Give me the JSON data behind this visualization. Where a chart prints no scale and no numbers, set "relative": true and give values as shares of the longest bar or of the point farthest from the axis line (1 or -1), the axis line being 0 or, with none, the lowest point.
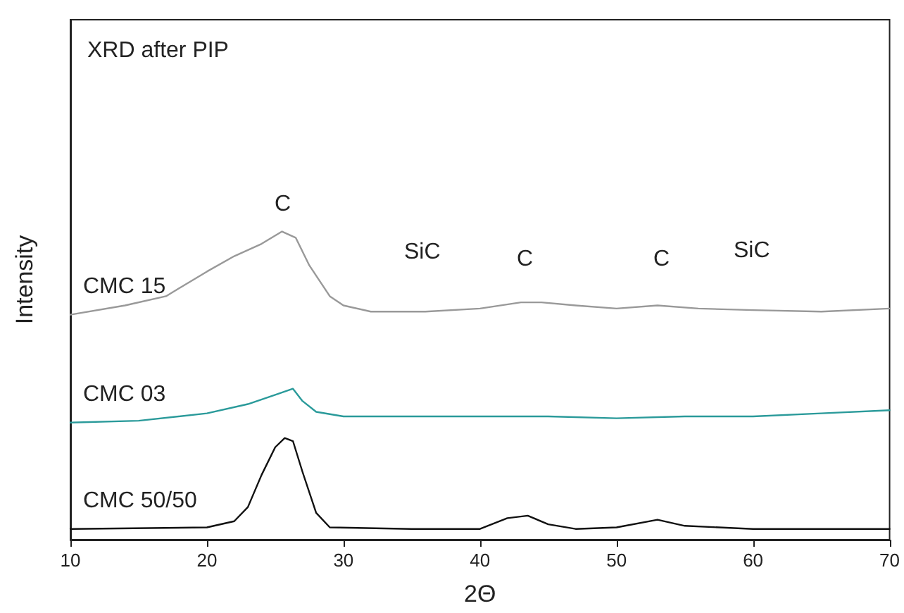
{
  "chart_data": {
    "type": "line",
    "relative": true,
    "xlabel": "2Θ",
    "ylabel": "Intensity",
    "xlim": [
      10,
      70
    ],
    "xticks": [
      10,
      20,
      30,
      40,
      50,
      60,
      70
    ],
    "grid": false,
    "legend": false,
    "marker": "none",
    "line_style": "solid",
    "annotations": [
      "XRD after PIP",
      "C",
      "SiC",
      "C",
      "C",
      "SiC"
    ],
    "series": [
      {
        "name": "CMC 15",
        "color": "#999999",
        "x": [
          10,
          14,
          17,
          20,
          22,
          24,
          25.5,
          26.5,
          27.5,
          29,
          30,
          32,
          36,
          40,
          43,
          44.5,
          47,
          50,
          53,
          56,
          60,
          65,
          70
        ],
        "values": [
          0.73,
          0.76,
          0.79,
          0.87,
          0.92,
          0.96,
          1.0,
          0.98,
          0.89,
          0.79,
          0.76,
          0.74,
          0.74,
          0.75,
          0.77,
          0.77,
          0.76,
          0.75,
          0.76,
          0.75,
          0.745,
          0.74,
          0.75
        ]
      },
      {
        "name": "CMC 03",
        "color": "#2a9a9a",
        "x": [
          10,
          15,
          20,
          23,
          25,
          26.3,
          27,
          28,
          30,
          35,
          40,
          45,
          50,
          55,
          60,
          65,
          70
        ],
        "values": [
          0.38,
          0.386,
          0.41,
          0.44,
          0.47,
          0.49,
          0.45,
          0.415,
          0.4,
          0.4,
          0.4,
          0.4,
          0.394,
          0.4,
          0.4,
          0.41,
          0.42
        ]
      },
      {
        "name": "CMC 50/50",
        "color": "#111111",
        "x": [
          10,
          20,
          22,
          23,
          24,
          25,
          25.7,
          26.3,
          27,
          28,
          29,
          35,
          40,
          42,
          43.5,
          45,
          47,
          50,
          53,
          55,
          60,
          70
        ],
        "values": [
          0.035,
          0.04,
          0.06,
          0.106,
          0.21,
          0.3,
          0.33,
          0.32,
          0.22,
          0.087,
          0.04,
          0.035,
          0.035,
          0.07,
          0.078,
          0.05,
          0.035,
          0.04,
          0.065,
          0.045,
          0.035,
          0.035
        ]
      }
    ]
  }
}
